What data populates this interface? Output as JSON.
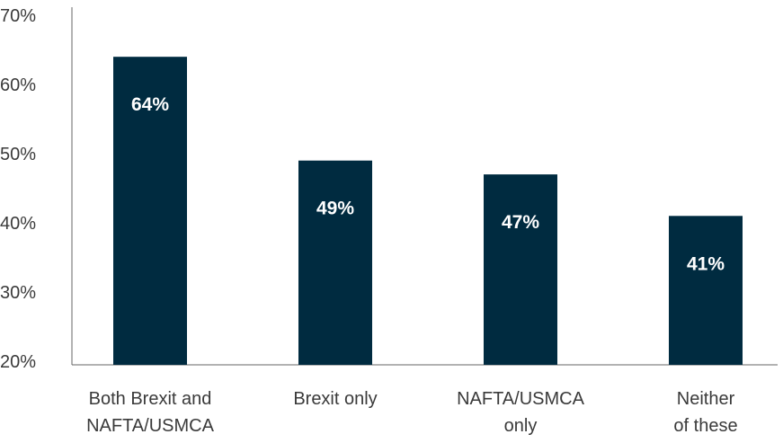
{
  "chart_data": {
    "type": "bar",
    "categories": [
      [
        "Both Brexit and",
        "NAFTA/USMCA"
      ],
      [
        "Brexit only"
      ],
      [
        "NAFTA/USMCA",
        "only"
      ],
      [
        "Neither",
        "of these"
      ]
    ],
    "values": [
      64,
      49,
      47,
      41
    ],
    "data_labels": [
      "64%",
      "49%",
      "47%",
      "41%"
    ],
    "title": "",
    "xlabel": "",
    "ylabel": "",
    "ylim": [
      20,
      70
    ],
    "yticks": [
      20,
      30,
      40,
      50,
      60,
      70
    ],
    "ytick_labels": [
      "20%",
      "30%",
      "40%",
      "50%",
      "60%",
      "70%"
    ],
    "grid": false,
    "legend": "none",
    "bar_color": "#002b40",
    "data_label_color": "#ffffff",
    "axis_color": "#666666",
    "text_color": "#3a3a3a"
  }
}
